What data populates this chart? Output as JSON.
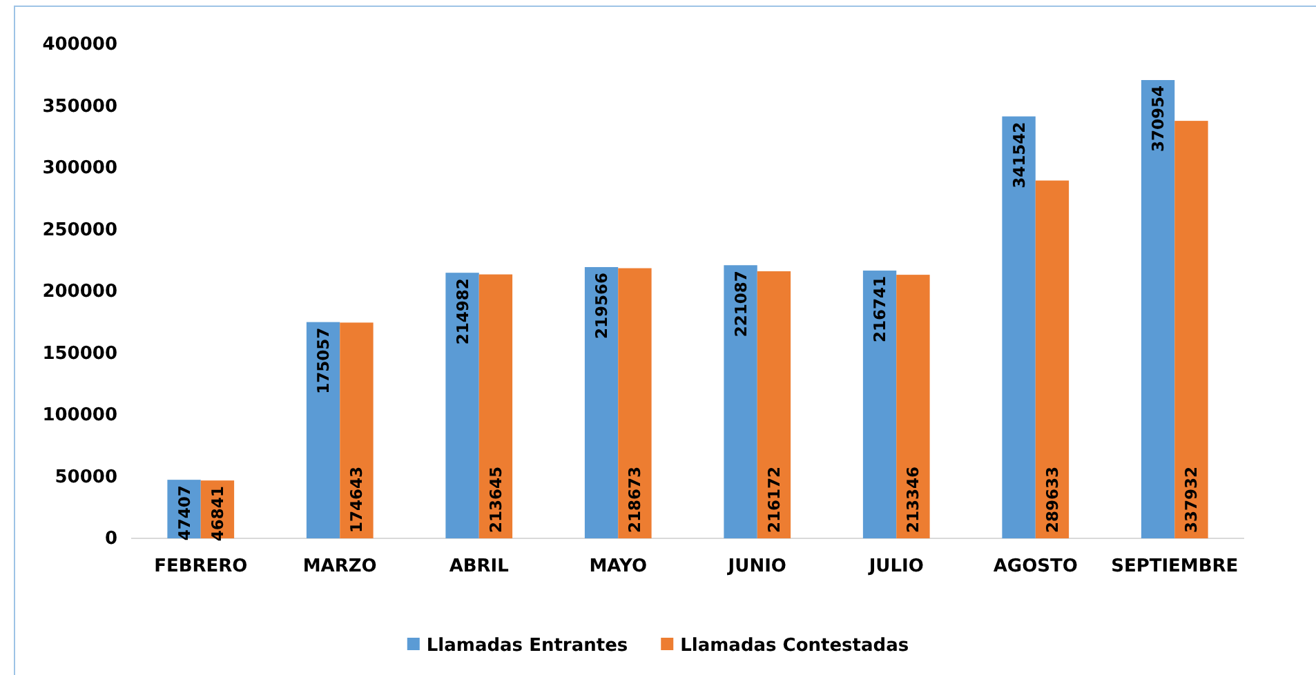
{
  "chart_data": {
    "type": "bar",
    "categories": [
      "FEBRERO",
      "MARZO",
      "ABRIL",
      "MAYO",
      "JUNIO",
      "JULIO",
      "AGOSTO",
      "SEPTIEMBRE"
    ],
    "series": [
      {
        "name": "Llamadas Entrantes",
        "color": "#5b9bd5",
        "values": [
          47407,
          175057,
          214982,
          219566,
          221087,
          216741,
          341542,
          370954
        ]
      },
      {
        "name": "Llamadas Contestadas",
        "color": "#ed7d31",
        "values": [
          46841,
          174643,
          213645,
          218673,
          216172,
          213346,
          289633,
          337932
        ]
      }
    ],
    "ylim": [
      0,
      400000
    ],
    "yticks": [
      0,
      50000,
      100000,
      150000,
      200000,
      250000,
      300000,
      350000,
      400000
    ],
    "grid": false,
    "legend": "bottom",
    "data_labels": true
  }
}
